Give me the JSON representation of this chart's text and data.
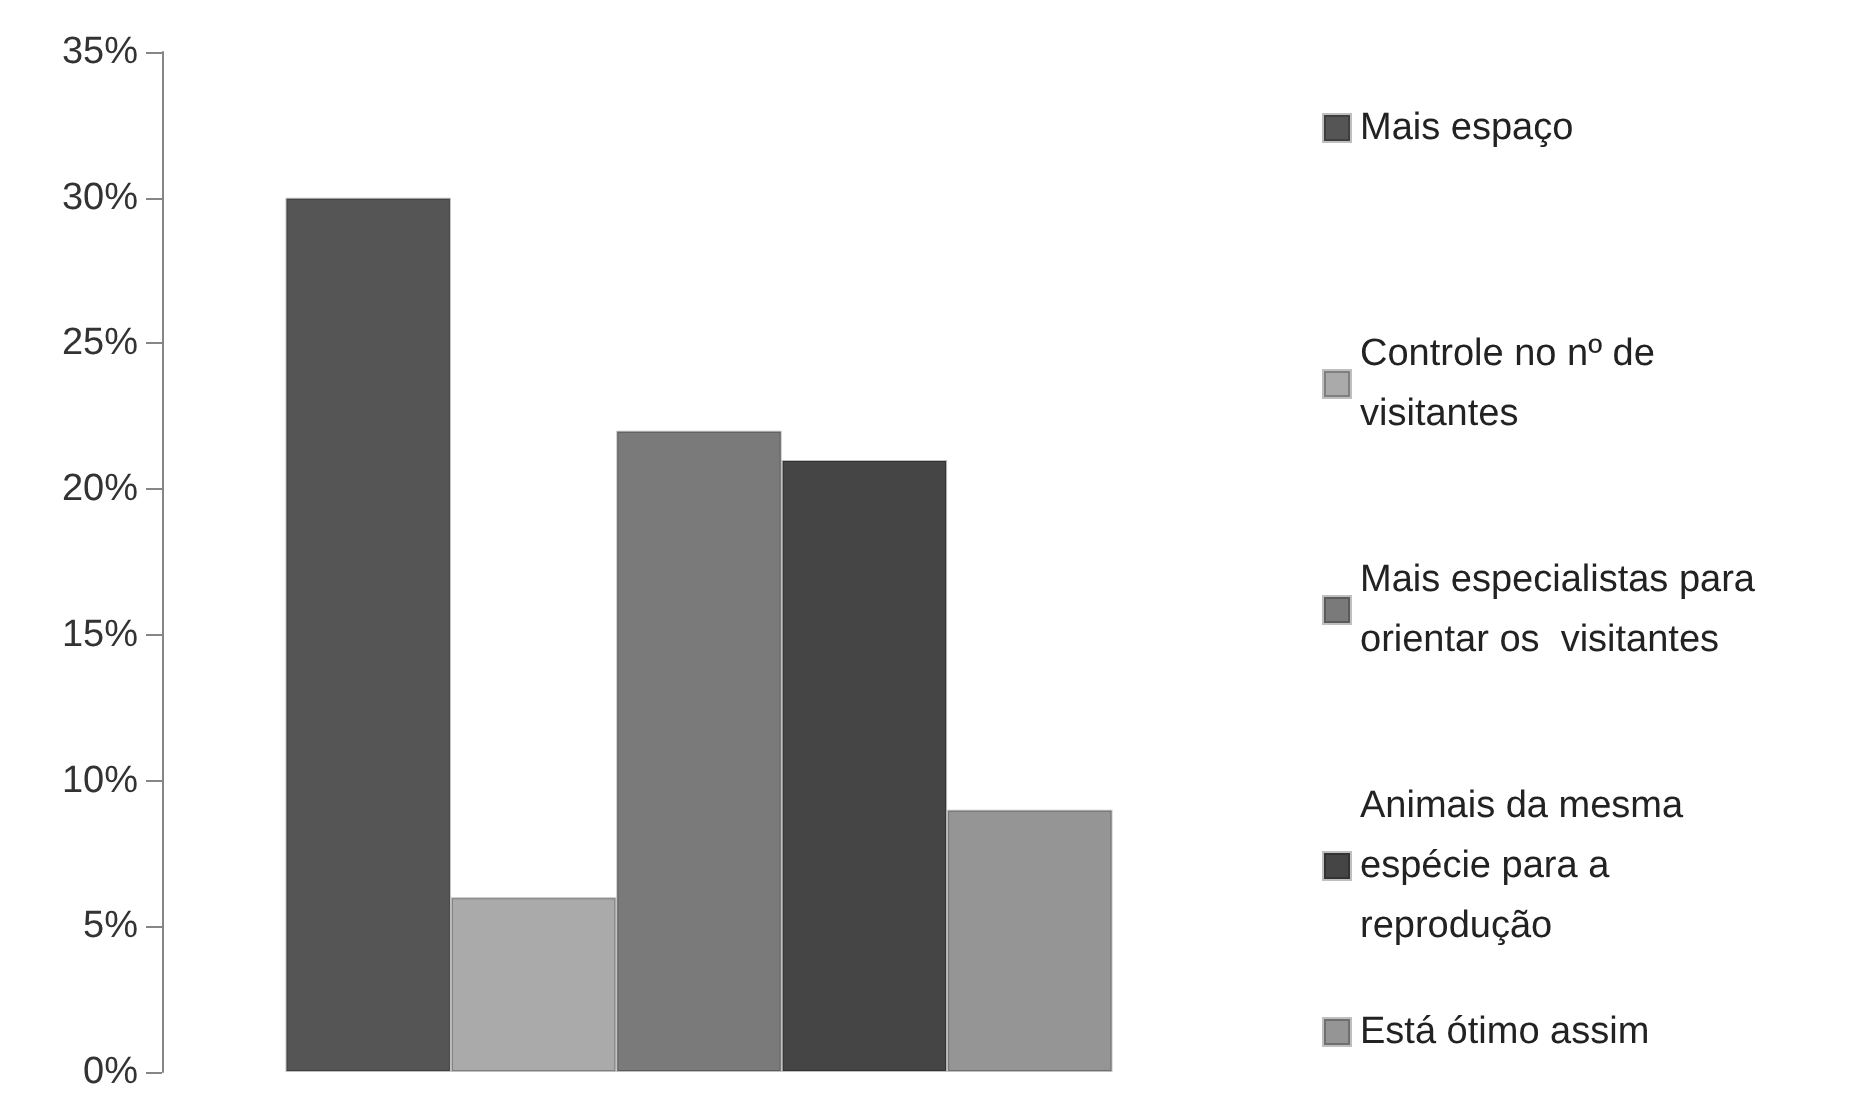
{
  "chart_data": {
    "type": "bar",
    "categories": [
      null
    ],
    "series": [
      {
        "name": "Mais espaço",
        "color": "#555555",
        "values": [
          30
        ]
      },
      {
        "name": "Controle no nº de visitantes",
        "color": "#aaaaaa",
        "values": [
          6
        ]
      },
      {
        "name": "Mais especialistas para orientar os  visitantes",
        "color": "#7a7a7a",
        "values": [
          22
        ]
      },
      {
        "name": "Animais da mesma espécie para a reprodução",
        "color": "#454545",
        "values": [
          21
        ]
      },
      {
        "name": "Está ótimo assim",
        "color": "#959595",
        "values": [
          9
        ]
      }
    ],
    "ylim": [
      0,
      35
    ],
    "yticks": [
      {
        "value": 0,
        "label": "0%"
      },
      {
        "value": 5,
        "label": "5%"
      },
      {
        "value": 10,
        "label": "10%"
      },
      {
        "value": 15,
        "label": "15%"
      },
      {
        "value": 20,
        "label": "20%"
      },
      {
        "value": 25,
        "label": "25%"
      },
      {
        "value": 30,
        "label": "30%"
      },
      {
        "value": 35,
        "label": "35%"
      }
    ],
    "grid": false,
    "legend": "right"
  }
}
